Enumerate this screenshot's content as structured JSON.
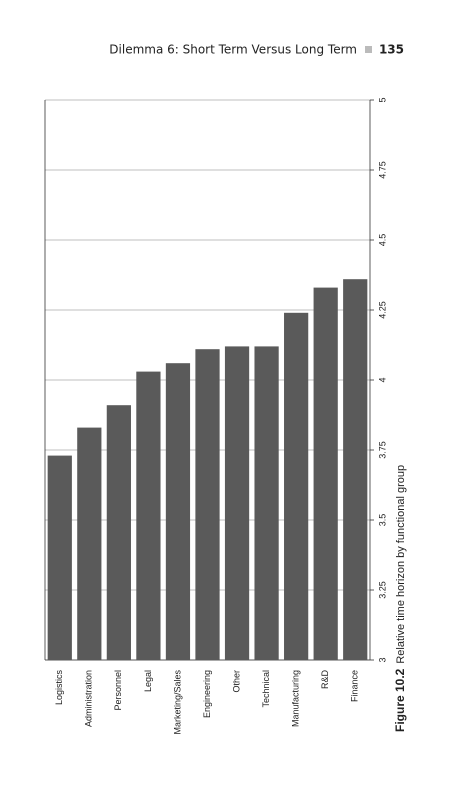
{
  "header": {
    "running_title": "Dilemma 6: Short Term Versus Long Term",
    "page_number": "135"
  },
  "chart_data": {
    "type": "bar",
    "figure_label": "Figure 10.2",
    "title": "Relative time horizon by functional group",
    "categories": [
      "Logistics",
      "Administration",
      "Personnel",
      "Legal",
      "Marketing/Sales",
      "Engineering",
      "Other",
      "Technical",
      "Manufacturing",
      "R&D",
      "Finance"
    ],
    "values": [
      3.73,
      3.83,
      3.91,
      4.03,
      4.06,
      4.11,
      4.12,
      4.12,
      4.24,
      4.33,
      4.36
    ],
    "color": "#5a5a5a",
    "ylim": [
      3,
      5
    ],
    "yticks": [
      3,
      3.25,
      3.5,
      3.75,
      4,
      4.25,
      4.5,
      4.75,
      5
    ],
    "grid": true
  }
}
